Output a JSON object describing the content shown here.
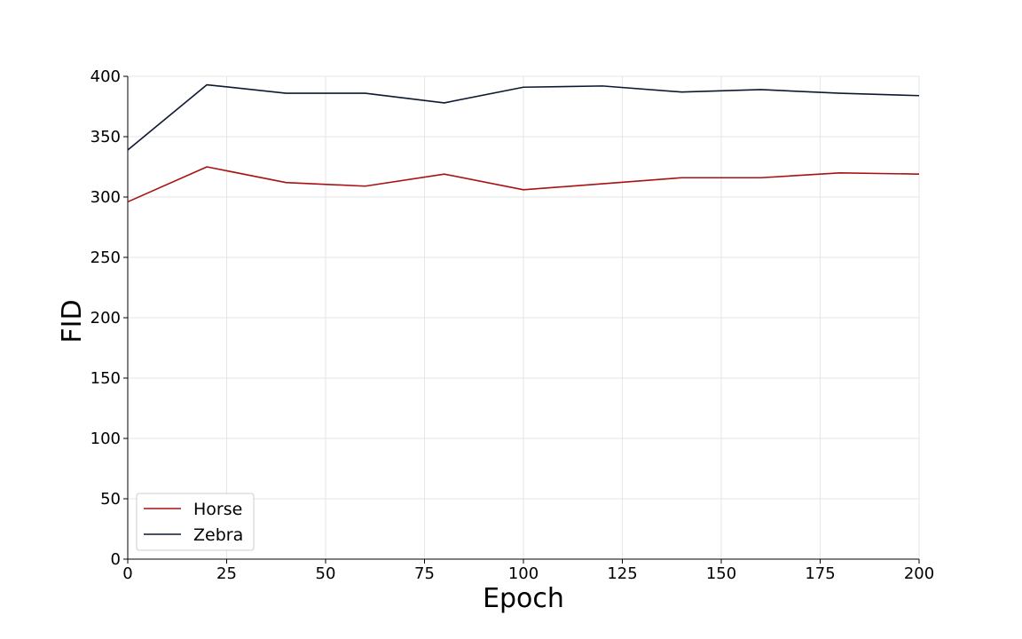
{
  "chart_data": {
    "type": "line",
    "title": "",
    "xlabel": "Epoch",
    "ylabel": "FID",
    "xlim": [
      0,
      200
    ],
    "ylim": [
      0,
      400
    ],
    "x_ticks": [
      0,
      25,
      50,
      75,
      100,
      125,
      150,
      175,
      200
    ],
    "y_ticks": [
      0,
      50,
      100,
      150,
      200,
      250,
      300,
      350,
      400
    ],
    "grid": true,
    "legend_position": "lower-left",
    "x": [
      0,
      20,
      40,
      60,
      80,
      100,
      120,
      140,
      160,
      180,
      200
    ],
    "series": [
      {
        "name": "Horse",
        "color": "#aa1111",
        "values": [
          296,
          325,
          312,
          309,
          319,
          306,
          311,
          316,
          316,
          320,
          319
        ]
      },
      {
        "name": "Zebra",
        "color": "#0d1830",
        "values": [
          339,
          393,
          386,
          386,
          378,
          391,
          392,
          387,
          389,
          386,
          384
        ]
      }
    ]
  }
}
